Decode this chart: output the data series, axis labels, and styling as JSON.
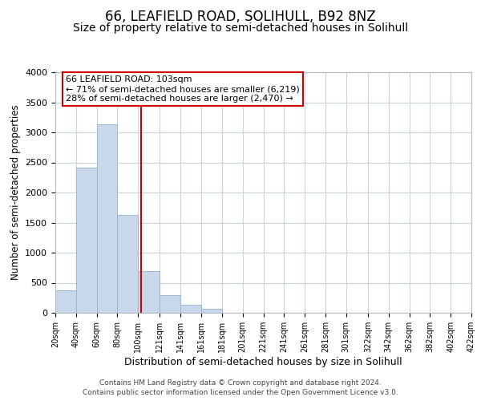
{
  "title": "66, LEAFIELD ROAD, SOLIHULL, B92 8NZ",
  "subtitle": "Size of property relative to semi-detached houses in Solihull",
  "xlabel": "Distribution of semi-detached houses by size in Solihull",
  "ylabel": "Number of semi-detached properties",
  "footer_line1": "Contains HM Land Registry data © Crown copyright and database right 2024.",
  "footer_line2": "Contains public sector information licensed under the Open Government Licence v3.0.",
  "annotation_title": "66 LEAFIELD ROAD: 103sqm",
  "annotation_line1": "← 71% of semi-detached houses are smaller (6,219)",
  "annotation_line2": "28% of semi-detached houses are larger (2,470) →",
  "property_size": 103,
  "bin_edges": [
    20,
    40,
    60,
    80,
    100,
    121,
    141,
    161,
    181,
    201,
    221,
    241,
    261,
    281,
    301,
    322,
    342,
    362,
    382,
    402,
    422
  ],
  "bin_counts": [
    370,
    2420,
    3140,
    1630,
    700,
    295,
    130,
    65,
    0,
    0,
    0,
    0,
    0,
    0,
    0,
    0,
    0,
    0,
    0,
    0
  ],
  "bar_color": "#c8d8ea",
  "bar_edgecolor": "#9ab8d0",
  "vline_color": "#cc0000",
  "vline_x": 103,
  "ylim": [
    0,
    4000
  ],
  "yticks": [
    0,
    500,
    1000,
    1500,
    2000,
    2500,
    3000,
    3500,
    4000
  ],
  "background_color": "#ffffff",
  "grid_color": "#c8d4de",
  "annotation_box_edgecolor": "#cc0000",
  "title_fontsize": 12,
  "subtitle_fontsize": 10
}
